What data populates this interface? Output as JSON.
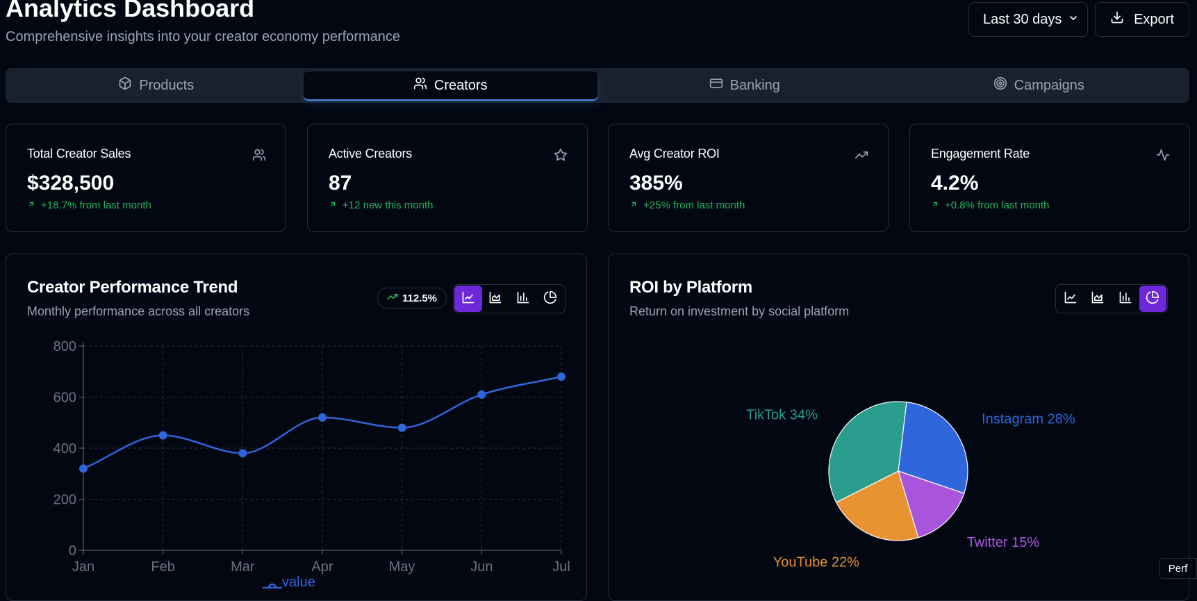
{
  "header": {
    "title": "Analytics Dashboard",
    "subtitle": "Comprehensive insights into your creator economy performance",
    "range": "Last 30 days",
    "export_label": "Export"
  },
  "tabs": [
    {
      "label": "Products",
      "icon": "box-icon",
      "active": false
    },
    {
      "label": "Creators",
      "icon": "users-icon",
      "active": true
    },
    {
      "label": "Banking",
      "icon": "credit-card-icon",
      "active": false
    },
    {
      "label": "Campaigns",
      "icon": "target-icon",
      "active": false
    }
  ],
  "kpis": [
    {
      "label": "Total Creator Sales",
      "value": "$328,500",
      "change": "+18.7% from last month",
      "icon": "users-icon"
    },
    {
      "label": "Active Creators",
      "value": "87",
      "change": "+12 new this month",
      "icon": "star-icon"
    },
    {
      "label": "Avg Creator ROI",
      "value": "385%",
      "change": "+25% from last month",
      "icon": "trending-up-icon"
    },
    {
      "label": "Engagement Rate",
      "value": "4.2%",
      "change": "+0.8% from last month",
      "icon": "activity-icon"
    }
  ],
  "trend_card": {
    "title": "Creator Performance Trend",
    "subtitle": "Monthly performance across all creators",
    "badge": "112.5%",
    "chart_type_active": "line",
    "legend": "value"
  },
  "roi_card": {
    "title": "ROI by Platform",
    "subtitle": "Return on investment by social platform",
    "chart_type_active": "pie"
  },
  "perf_label": "Perf",
  "colors": {
    "background": "#020712",
    "accent_purple": "#6d28d9",
    "line_blue": "#2f66dc",
    "positive_green": "#23b45c"
  },
  "chart_data": [
    {
      "type": "line",
      "categories": [
        "Jan",
        "Feb",
        "Mar",
        "Apr",
        "May",
        "Jun",
        "Jul"
      ],
      "series": [
        {
          "name": "value",
          "values": [
            320,
            450,
            380,
            520,
            480,
            610,
            680
          ]
        }
      ],
      "yticks": [
        0,
        200,
        400,
        600,
        800
      ],
      "ylim": [
        0,
        800
      ],
      "grid": true,
      "legend_position": "bottom",
      "curve": "smooth"
    },
    {
      "type": "pie",
      "slices": [
        {
          "name": "Instagram",
          "label": "Instagram 28%",
          "value": 28,
          "color": "#2f66dc"
        },
        {
          "name": "Twitter",
          "label": "Twitter 15%",
          "value": 15,
          "color": "#a855dc"
        },
        {
          "name": "YouTube",
          "label": "YouTube 22%",
          "value": 22,
          "color": "#e89232"
        },
        {
          "name": "TikTok",
          "label": "TikTok 34%",
          "value": 34,
          "color": "#2a9d8f"
        }
      ]
    }
  ]
}
